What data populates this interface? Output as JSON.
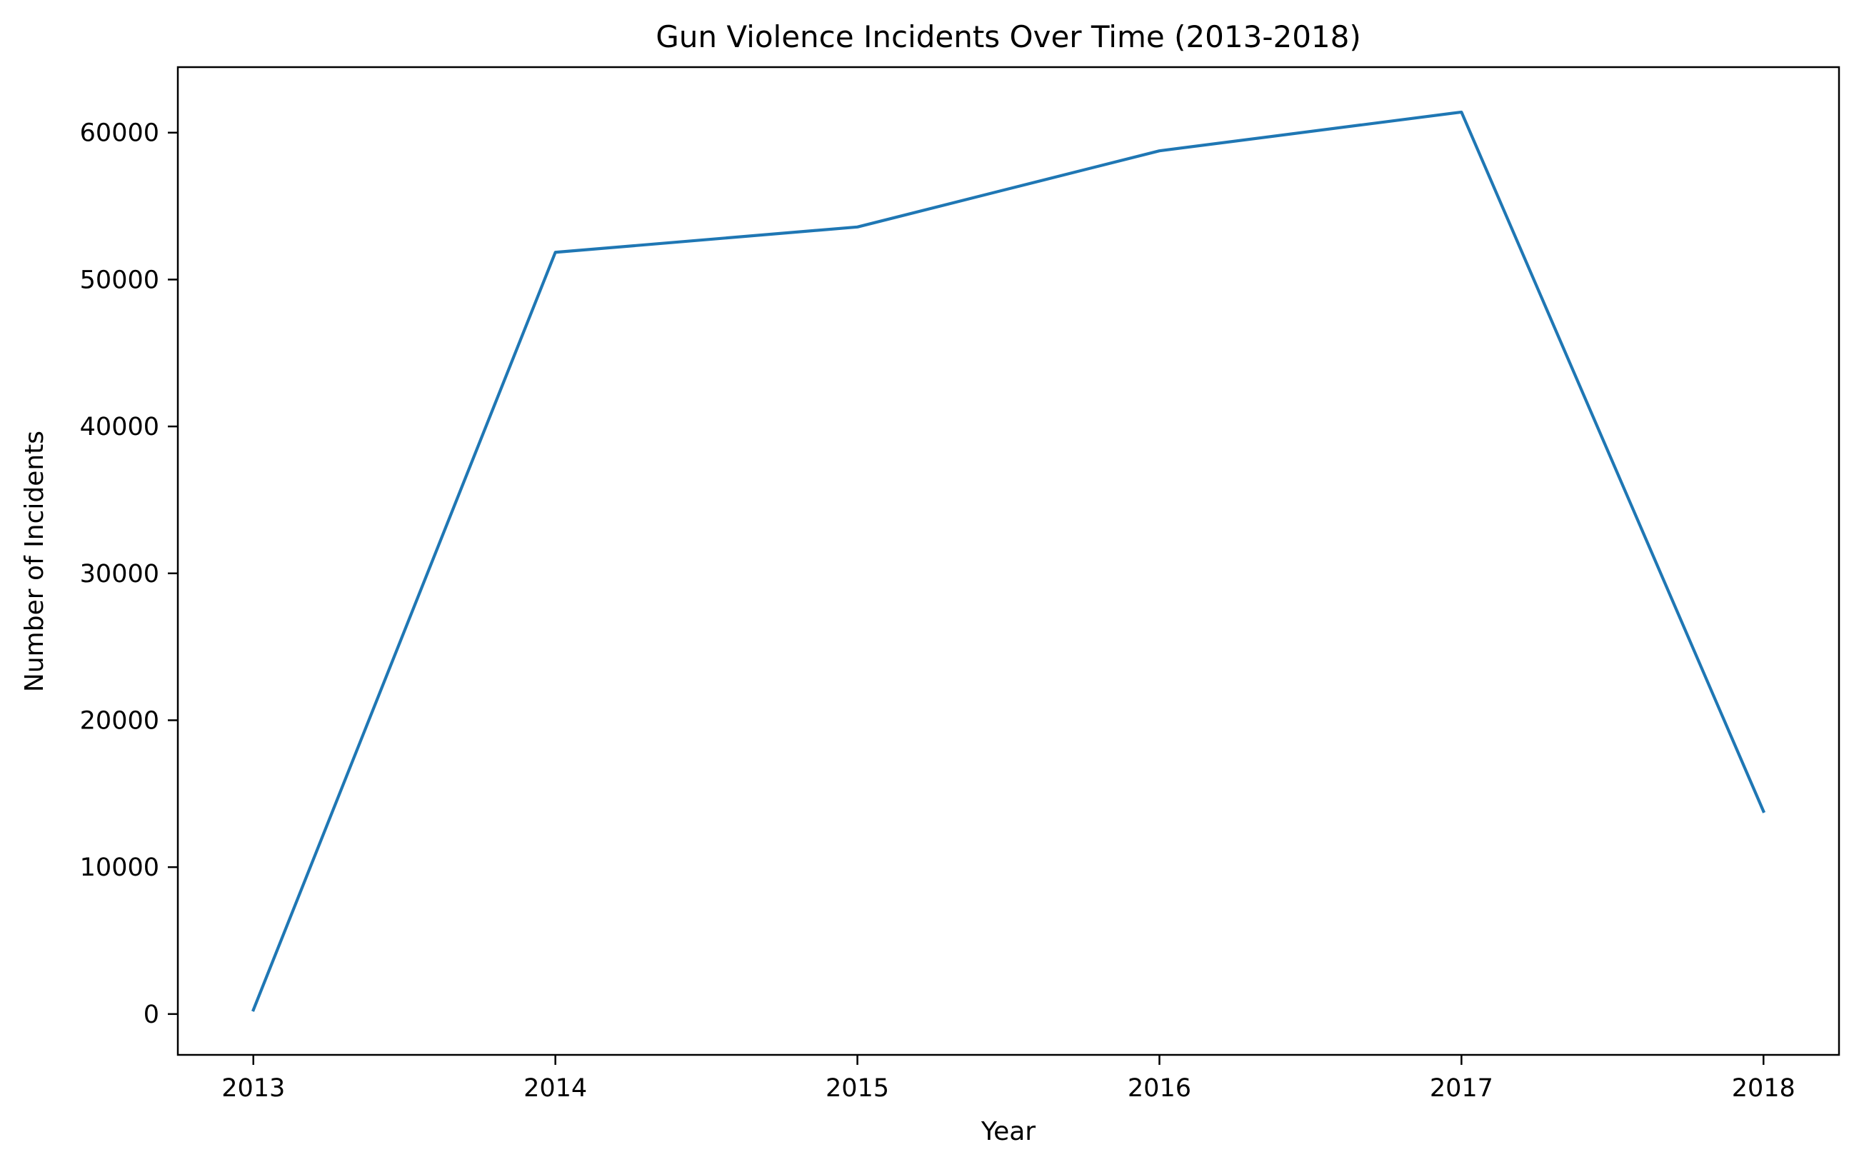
{
  "chart_data": {
    "type": "line",
    "title": "Gun Violence Incidents Over Time (2013-2018)",
    "xlabel": "Year",
    "ylabel": "Number of Incidents",
    "x": [
      2013,
      2014,
      2015,
      2016,
      2017,
      2018
    ],
    "series": [
      {
        "values": [
          278,
          51854,
          53579,
          58763,
          61401,
          13802
        ],
        "color": "#1f77b4"
      }
    ],
    "xlim": [
      2012.75,
      2018.25
    ],
    "ylim": [
      -2780,
      64460
    ],
    "xticks": [
      2013,
      2014,
      2015,
      2016,
      2017,
      2018
    ],
    "xtick_labels": [
      "2013",
      "2014",
      "2015",
      "2016",
      "2017",
      "2018"
    ],
    "yticks": [
      0,
      10000,
      20000,
      30000,
      40000,
      50000,
      60000
    ],
    "ytick_labels": [
      "0",
      "10000",
      "20000",
      "30000",
      "40000",
      "50000",
      "60000"
    ],
    "grid": false,
    "legend": "none"
  }
}
